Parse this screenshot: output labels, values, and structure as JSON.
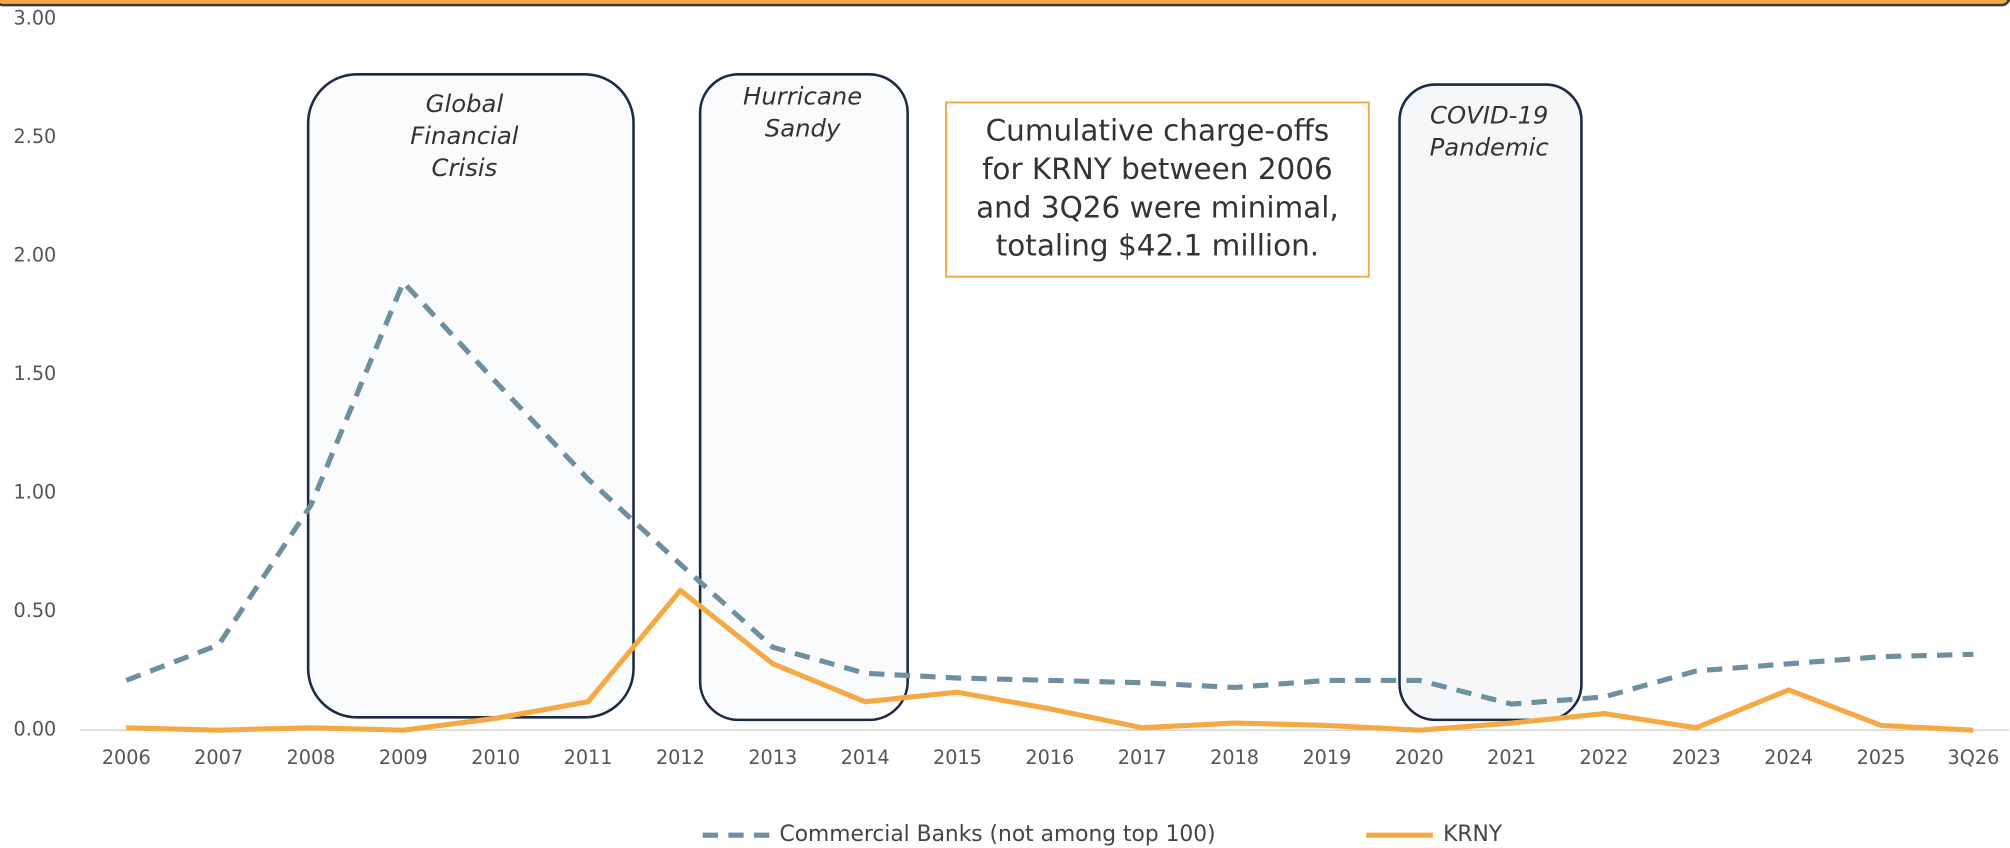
{
  "chart_data": {
    "type": "line",
    "categories": [
      "2006",
      "2007",
      "2008",
      "2009",
      "2010",
      "2011",
      "2012",
      "2013",
      "2014",
      "2015",
      "2016",
      "2017",
      "2018",
      "2019",
      "2020",
      "2021",
      "2022",
      "2023",
      "2024",
      "2025",
      "3Q26"
    ],
    "series": [
      {
        "name": "Commercial Banks (not among top 100)",
        "color": "#6e8fa0",
        "dash": true,
        "values": [
          0.21,
          0.36,
          0.95,
          1.89,
          1.47,
          1.06,
          0.7,
          0.35,
          0.24,
          0.22,
          0.21,
          0.2,
          0.18,
          0.21,
          0.21,
          0.11,
          0.14,
          0.25,
          0.28,
          0.31,
          0.32
        ]
      },
      {
        "name": "KRNY",
        "color": "#f5a944",
        "dash": false,
        "values": [
          0.01,
          0.0,
          0.01,
          0.0,
          0.05,
          0.12,
          0.59,
          0.28,
          0.12,
          0.16,
          0.09,
          0.01,
          0.03,
          0.02,
          0.0,
          0.03,
          0.07,
          0.01,
          0.17,
          0.02,
          0.0
        ]
      }
    ],
    "ylim": [
      0,
      3
    ],
    "yticks": [
      {
        "value": 0,
        "label": "0.00"
      },
      {
        "value": 0.5,
        "label": "0.50"
      },
      {
        "value": 1,
        "label": "1.00"
      },
      {
        "value": 1.5,
        "label": "1.50"
      },
      {
        "value": 2,
        "label": "2.00"
      },
      {
        "value": 2.5,
        "label": "2.50"
      },
      {
        "value": 3,
        "label": "3.00"
      }
    ],
    "annotations": [
      {
        "lines": [
          "Global",
          "Financial",
          "Crisis"
        ]
      },
      {
        "lines": [
          "Hurricane",
          "Sandy"
        ]
      },
      {
        "lines": [
          "COVID-19",
          "Pandemic"
        ]
      }
    ],
    "text_box": [
      "Cumulative charge-offs",
      "for KRNY between 2006",
      "and 3Q26 were minimal,",
      "totaling $42.1 million."
    ]
  }
}
